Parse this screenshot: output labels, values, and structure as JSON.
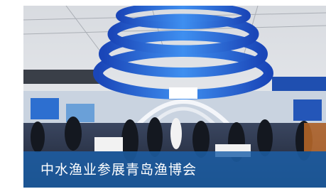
{
  "caption": "中水渔业参展青岛渔博会"
}
